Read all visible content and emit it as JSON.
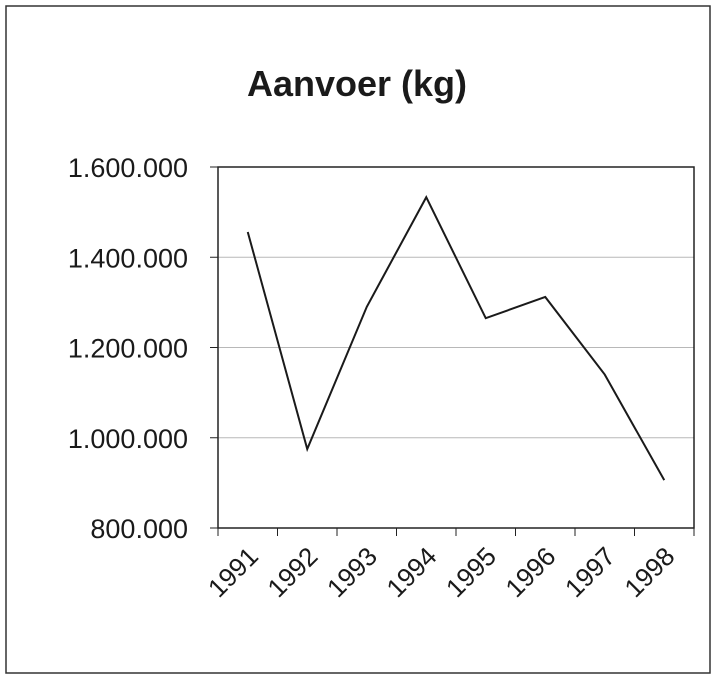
{
  "chart_data": {
    "type": "line",
    "title": "Aanvoer (kg)",
    "categories": [
      "1991",
      "1992",
      "1993",
      "1994",
      "1995",
      "1996",
      "1997",
      "1998"
    ],
    "series": [
      {
        "name": "Aanvoer",
        "color": "#1a1a1a",
        "values": [
          1456000,
          975000,
          1290000,
          1533000,
          1265000,
          1312000,
          1140000,
          906000
        ]
      }
    ],
    "ylim": [
      800000,
      1600000
    ],
    "yticks": [
      {
        "value": 800000,
        "label": "800.000"
      },
      {
        "value": 1000000,
        "label": "1.000.000"
      },
      {
        "value": 1200000,
        "label": "1.200.000"
      },
      {
        "value": 1400000,
        "label": "1.400.000"
      },
      {
        "value": 1600000,
        "label": "1.600.000"
      }
    ],
    "grid": true
  }
}
